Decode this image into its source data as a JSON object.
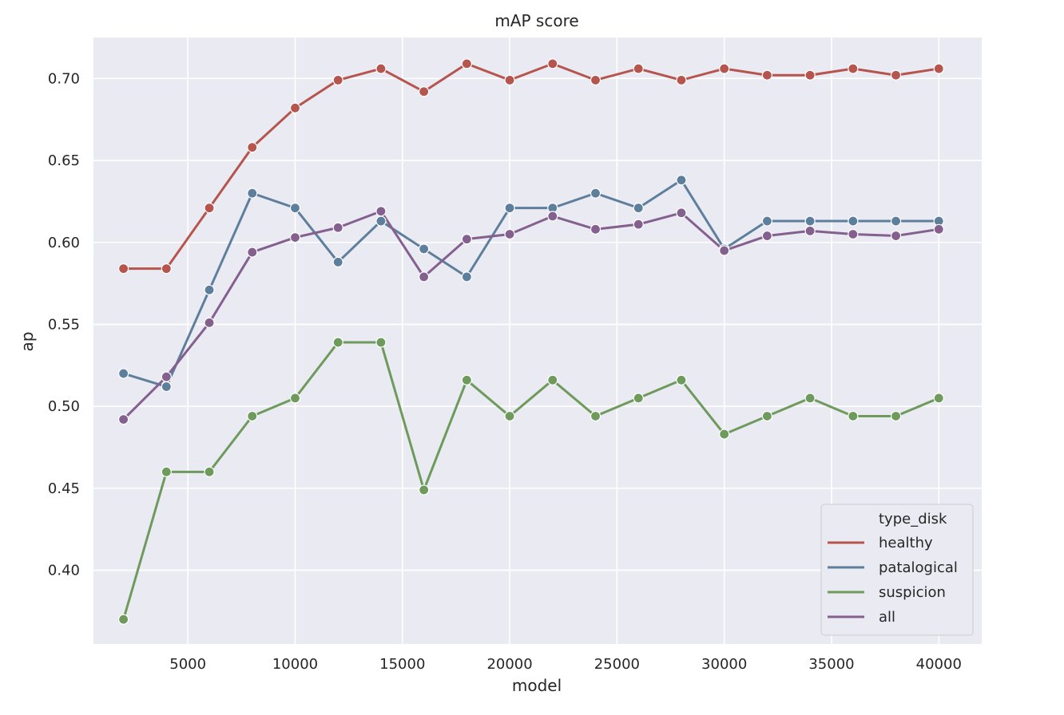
{
  "chart_data": {
    "type": "line",
    "title": "mAP score",
    "xlabel": "model",
    "ylabel": "ap",
    "xlim": [
      600,
      42000
    ],
    "ylim": [
      0.355,
      0.725
    ],
    "xticks": [
      5000,
      10000,
      15000,
      20000,
      25000,
      30000,
      35000,
      40000
    ],
    "xtick_labels": [
      "5000",
      "10000",
      "15000",
      "20000",
      "25000",
      "30000",
      "35000",
      "40000"
    ],
    "yticks": [
      0.4,
      0.45,
      0.5,
      0.55,
      0.6,
      0.65,
      0.7
    ],
    "ytick_labels": [
      "0.40",
      "0.45",
      "0.50",
      "0.55",
      "0.60",
      "0.65",
      "0.70"
    ],
    "grid": true,
    "legend": {
      "title": "type_disk",
      "placement": "bottom-right"
    },
    "x": [
      2000,
      4000,
      6000,
      8000,
      10000,
      12000,
      14000,
      16000,
      18000,
      20000,
      22000,
      24000,
      26000,
      28000,
      30000,
      32000,
      34000,
      36000,
      38000,
      40000
    ],
    "series": [
      {
        "name": "healthy",
        "color": "#b5554d",
        "values": [
          0.584,
          0.584,
          0.621,
          0.658,
          0.682,
          0.699,
          0.706,
          0.692,
          0.709,
          0.699,
          0.709,
          0.699,
          0.706,
          0.699,
          0.706,
          0.702,
          0.702,
          0.706,
          0.702,
          0.706
        ]
      },
      {
        "name": "patalogical",
        "color": "#5e7f9c",
        "values": [
          0.52,
          0.512,
          0.571,
          0.63,
          0.621,
          0.588,
          0.613,
          0.596,
          0.579,
          0.621,
          0.621,
          0.63,
          0.621,
          0.638,
          0.596,
          0.613,
          0.613,
          0.613,
          0.613,
          0.613
        ]
      },
      {
        "name": "suspicion",
        "color": "#6e9a5c",
        "values": [
          0.37,
          0.46,
          0.46,
          0.494,
          0.505,
          0.539,
          0.539,
          0.449,
          0.516,
          0.494,
          0.516,
          0.494,
          0.505,
          0.516,
          0.483,
          0.494,
          0.505,
          0.494,
          0.494,
          0.505
        ]
      },
      {
        "name": "all",
        "color": "#84608f",
        "values": [
          0.492,
          0.518,
          0.551,
          0.594,
          0.603,
          0.609,
          0.619,
          0.579,
          0.602,
          0.605,
          0.616,
          0.608,
          0.611,
          0.618,
          0.595,
          0.604,
          0.607,
          0.605,
          0.604,
          0.608
        ]
      }
    ]
  }
}
